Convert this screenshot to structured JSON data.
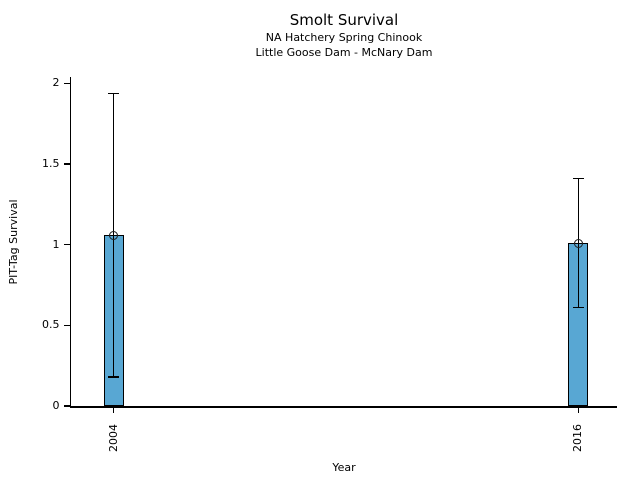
{
  "chart_data": {
    "type": "bar",
    "title": "Smolt Survival",
    "subtitle1": "NA Hatchery Spring Chinook",
    "subtitle2": "Little Goose Dam - McNary Dam",
    "xlabel": "Year",
    "ylabel": "PIT-Tag Survival",
    "categories": [
      "2004",
      "2016"
    ],
    "x_numeric": [
      2004,
      2016
    ],
    "values": [
      1.06,
      1.01
    ],
    "error_low": [
      0.18,
      0.61
    ],
    "error_high": [
      1.94,
      1.41
    ],
    "yticks": [
      0,
      0.5,
      1,
      1.5,
      2
    ],
    "ytick_labels": [
      "0",
      "0.5",
      "1",
      "1.5",
      "2"
    ],
    "ylim": [
      0,
      2.04
    ],
    "xlim": [
      2002.9,
      2017.0
    ],
    "grid": false,
    "legend": "none",
    "marker": "open-circle",
    "bar_color": "#58A7D3",
    "bar_edge_color": "#000000",
    "axis_color": "#000000",
    "background_color": "#FFFFFF"
  }
}
